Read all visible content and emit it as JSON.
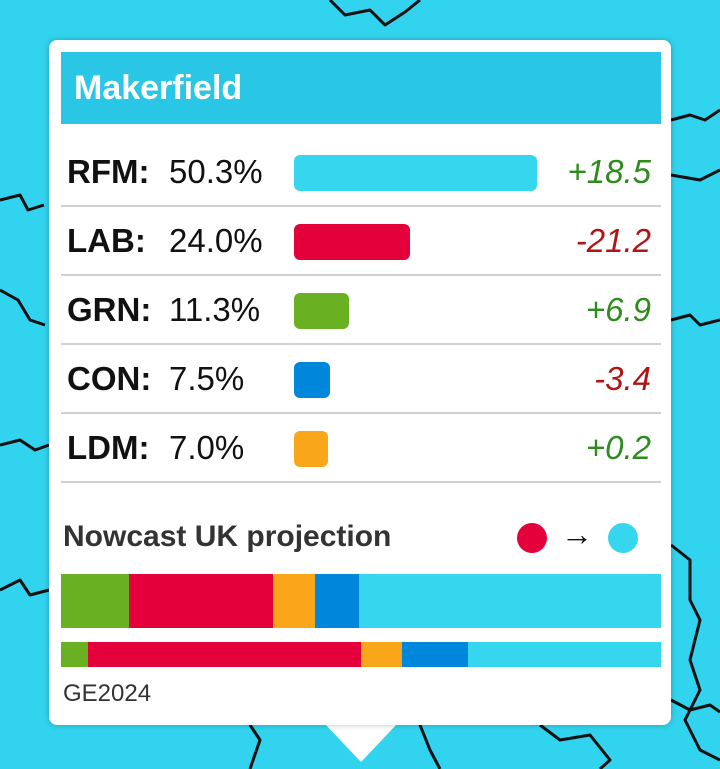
{
  "constituency": "Makerfield",
  "colors": {
    "map_background": "#31d3ee",
    "header": "#2ac6e6",
    "positive": "#2e8b1e",
    "negative": "#b01515"
  },
  "results": [
    {
      "party": "RFM:",
      "share": "50.3%",
      "share_value": 50.3,
      "change": "+18.5",
      "color": "#35d6ee",
      "direction": "up"
    },
    {
      "party": "LAB:",
      "share": "24.0%",
      "share_value": 24.0,
      "change": "-21.2",
      "color": "#e4003b",
      "direction": "down"
    },
    {
      "party": "GRN:",
      "share": "11.3%",
      "share_value": 11.3,
      "change": "+6.9",
      "color": "#6ab023",
      "direction": "up"
    },
    {
      "party": "CON:",
      "share": "7.5%",
      "share_value": 7.5,
      "change": "-3.4",
      "color": "#0087dc",
      "direction": "down"
    },
    {
      "party": "LDM:",
      "share": "7.0%",
      "share_value": 7.0,
      "change": "+0.2",
      "color": "#faa61a",
      "direction": "up"
    }
  ],
  "projection": {
    "label": "Nowcast UK projection",
    "from_color": "#e4003b",
    "to_color": "#35d6ee",
    "arrow": "→",
    "segments": [
      {
        "party": "GRN",
        "value": 11.3,
        "color": "#6ab023"
      },
      {
        "party": "LAB",
        "value": 24.0,
        "color": "#e4003b"
      },
      {
        "party": "LDM",
        "value": 7.0,
        "color": "#faa61a"
      },
      {
        "party": "CON",
        "value": 7.5,
        "color": "#0087dc"
      },
      {
        "party": "RFM",
        "value": 50.3,
        "color": "#35d6ee"
      }
    ]
  },
  "ge2024": {
    "label": "GE2024",
    "segments": [
      {
        "party": "GRN",
        "value": 4.4,
        "color": "#6ab023"
      },
      {
        "party": "LAB",
        "value": 45.2,
        "color": "#e4003b"
      },
      {
        "party": "LDM",
        "value": 6.8,
        "color": "#faa61a"
      },
      {
        "party": "CON",
        "value": 10.9,
        "color": "#0087dc"
      },
      {
        "party": "RFM",
        "value": 31.8,
        "color": "#35d6ee"
      }
    ]
  }
}
